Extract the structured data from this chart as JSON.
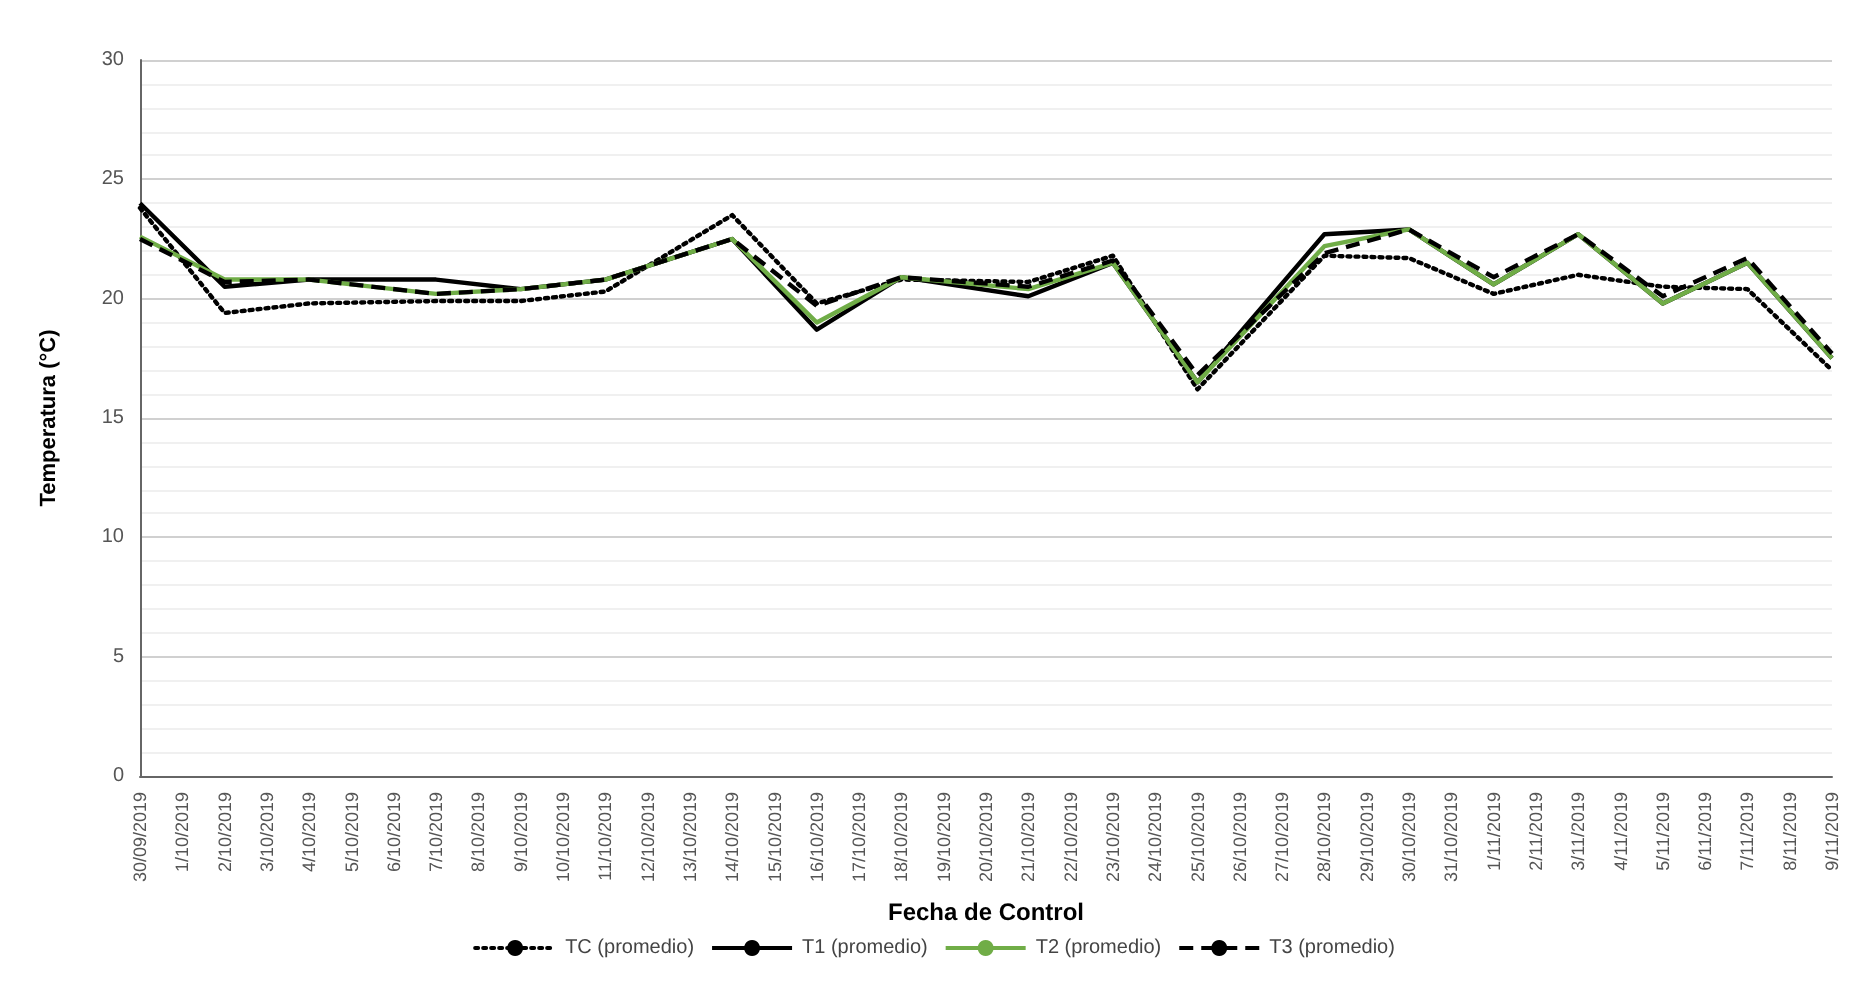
{
  "chart_data": {
    "type": "line",
    "xlabel": "Fecha de Control",
    "ylabel": "Temperatura (°C)",
    "categories": [
      "30/09/2019",
      "1/10/2019",
      "2/10/2019",
      "3/10/2019",
      "4/10/2019",
      "5/10/2019",
      "6/10/2019",
      "7/10/2019",
      "8/10/2019",
      "9/10/2019",
      "10/10/2019",
      "11/10/2019",
      "12/10/2019",
      "13/10/2019",
      "14/10/2019",
      "15/10/2019",
      "16/10/2019",
      "17/10/2019",
      "18/10/2019",
      "19/10/2019",
      "20/10/2019",
      "21/10/2019",
      "22/10/2019",
      "23/10/2019",
      "24/10/2019",
      "25/10/2019",
      "26/10/2019",
      "27/10/2019",
      "28/10/2019",
      "29/10/2019",
      "30/10/2019",
      "31/10/2019",
      "1/11/2019",
      "2/11/2019",
      "3/11/2019",
      "4/11/2019",
      "5/11/2019",
      "6/11/2019",
      "7/11/2019",
      "8/11/2019",
      "9/11/2019"
    ],
    "series": [
      {
        "name": "TC (promedio)",
        "color": "#000000",
        "line_style": "dotted",
        "values": [
          23.8,
          null,
          19.4,
          null,
          19.8,
          null,
          null,
          19.9,
          null,
          19.9,
          null,
          20.3,
          null,
          null,
          23.5,
          null,
          19.8,
          null,
          20.8,
          null,
          null,
          20.7,
          null,
          21.8,
          null,
          16.2,
          null,
          null,
          21.8,
          null,
          21.7,
          null,
          20.2,
          null,
          21.0,
          null,
          20.5,
          null,
          20.4,
          null,
          17.0
        ]
      },
      {
        "name": "T1 (promedio)",
        "color": "#000000",
        "line_style": "solid",
        "values": [
          24.0,
          null,
          20.5,
          null,
          20.8,
          null,
          null,
          20.8,
          null,
          20.4,
          null,
          20.8,
          null,
          null,
          22.5,
          null,
          18.7,
          null,
          20.9,
          null,
          null,
          20.1,
          null,
          21.5,
          null,
          16.5,
          null,
          null,
          22.7,
          null,
          22.9,
          null,
          20.6,
          null,
          22.7,
          null,
          19.8,
          null,
          21.5,
          null,
          17.5
        ]
      },
      {
        "name": "T2 (promedio)",
        "color": "#70ad47",
        "line_style": "solid",
        "values": [
          22.6,
          null,
          20.8,
          null,
          20.8,
          null,
          null,
          20.2,
          null,
          20.4,
          null,
          20.8,
          null,
          null,
          22.5,
          null,
          19.0,
          null,
          20.9,
          null,
          null,
          20.4,
          null,
          21.5,
          null,
          16.5,
          null,
          null,
          22.2,
          null,
          22.9,
          null,
          20.6,
          null,
          22.7,
          null,
          19.8,
          null,
          21.5,
          null,
          17.5
        ]
      },
      {
        "name": "T3 (promedio)",
        "color": "#000000",
        "line_style": "dashed",
        "values": [
          22.5,
          null,
          20.7,
          null,
          20.8,
          null,
          null,
          20.2,
          null,
          20.4,
          null,
          20.8,
          null,
          null,
          22.5,
          null,
          19.7,
          null,
          20.9,
          null,
          null,
          20.5,
          null,
          21.6,
          null,
          16.8,
          null,
          null,
          21.9,
          null,
          22.9,
          null,
          20.9,
          null,
          22.7,
          null,
          20.1,
          null,
          21.7,
          null,
          17.7
        ]
      }
    ],
    "ylim": [
      0,
      30
    ],
    "yticks": [
      0,
      5,
      10,
      15,
      20,
      25,
      30
    ],
    "grid": "y",
    "legend": "bottom",
    "marker": "none"
  }
}
